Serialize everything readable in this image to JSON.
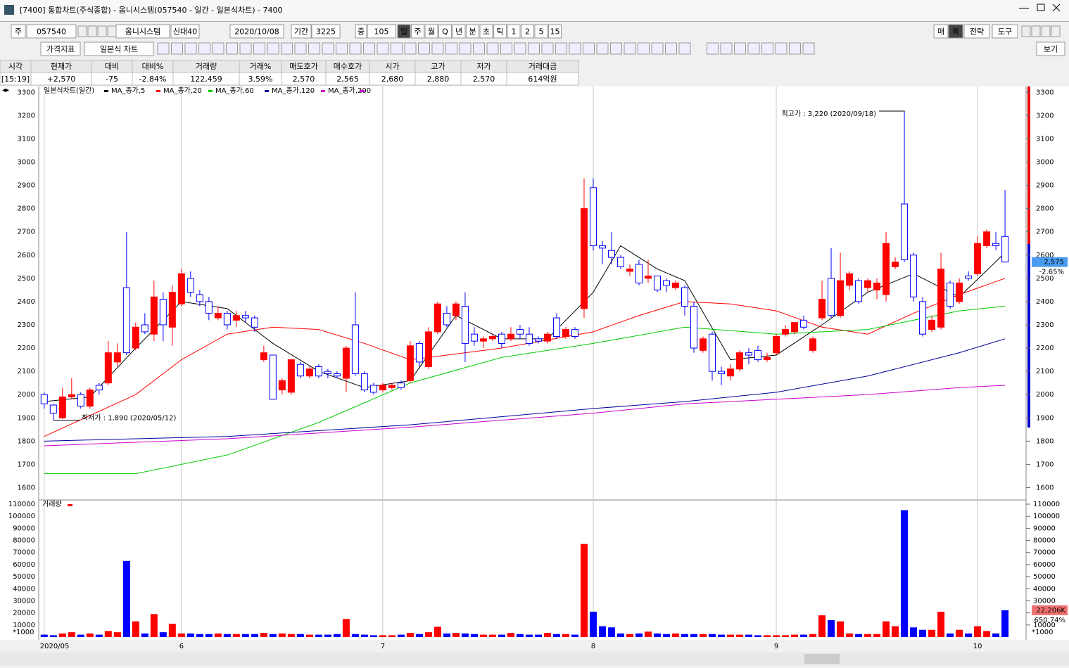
{
  "ui": {
    "window_title": "[7400] 통합차트(주식종합) - 옴니시스템(057540 - 일간 - 일본식차트) - 7400",
    "row1_left": [
      "주",
      "057540",
      "옴니시스템",
      "신대40",
      "2020/10/08",
      "기간",
      "3225",
      "중",
      "105"
    ],
    "periods": [
      "일",
      "주",
      "월",
      "Q",
      "년",
      "분",
      "초",
      "틱",
      "1",
      "2",
      "5",
      "15"
    ],
    "row1_right": [
      "매",
      "복",
      "전략",
      "도구"
    ],
    "row2": [
      "가격지표",
      "일본식 차트"
    ],
    "row2_right": "보기",
    "info_headers": [
      "시각",
      "현재가",
      "대비",
      "대비%",
      "거래량",
      "거래%",
      "매도호가",
      "매수호가",
      "시가",
      "고가",
      "저가",
      "거래대금"
    ],
    "info_values": [
      "[15:19]",
      "+2,570",
      "-75",
      "-2.84%",
      "122,459",
      "3.59%",
      "2,570",
      "2,565",
      "2,680",
      "2,880",
      "2,570",
      "614억원"
    ],
    "price_tag": "2,575",
    "price_pct": "-2.65%",
    "volume_tag": "22,206K",
    "volume_pct": "650.74%"
  },
  "chart_data": {
    "type": "candlestick",
    "legend": "일본식차트(일간)",
    "up_color": "#ff0000",
    "down_color": "#0000ff",
    "open": [
      2000,
      1955,
      1900,
      1990,
      2000,
      1950,
      2040,
      2050,
      2140,
      2460,
      2200,
      2300,
      2260,
      2410,
      2290,
      2390,
      2500,
      2430,
      2400,
      2330,
      2350,
      2320,
      2340,
      2330,
      2150,
      2170,
      2020,
      2010,
      2130,
      2080,
      2120,
      2100,
      2090,
      2070,
      2300,
      2090,
      2040,
      2020,
      2030,
      2050,
      2060,
      2220,
      2120,
      2270,
      2350,
      2340,
      2380,
      2260,
      2230,
      2240,
      2260,
      2240,
      2280,
      2260,
      2240,
      2230,
      2330,
      2250,
      2280,
      2370,
      2890,
      2640,
      2620,
      2590,
      2530,
      2560,
      2500,
      2510,
      2490,
      2460,
      2460,
      2380,
      2190,
      2260,
      2100,
      2080,
      2110,
      2180,
      2190,
      2150,
      2180,
      2260,
      2270,
      2320,
      2190,
      2330,
      2500,
      2340,
      2470,
      2490,
      2460,
      2450,
      2430,
      2550,
      2820,
      2600,
      2400,
      2280,
      2290,
      2480,
      2400,
      2510,
      2520,
      2640,
      2650,
      2680
    ],
    "high": [
      2010,
      1960,
      2030,
      2070,
      2010,
      2030,
      2050,
      2230,
      2220,
      2700,
      2310,
      2350,
      2490,
      2440,
      2470,
      2540,
      2530,
      2450,
      2420,
      2380,
      2360,
      2360,
      2360,
      2340,
      2210,
      2170,
      2070,
      2150,
      2140,
      2120,
      2130,
      2110,
      2100,
      2210,
      2440,
      2100,
      2050,
      2050,
      2050,
      2060,
      2230,
      2230,
      2290,
      2400,
      2380,
      2400,
      2440,
      2290,
      2250,
      2260,
      2270,
      2290,
      2300,
      2290,
      2250,
      2270,
      2350,
      2290,
      2290,
      2930,
      2930,
      2660,
      2700,
      2600,
      2560,
      2580,
      2580,
      2510,
      2500,
      2490,
      2470,
      2400,
      2250,
      2270,
      2120,
      2130,
      2190,
      2200,
      2210,
      2180,
      2260,
      2300,
      2310,
      2340,
      2250,
      2490,
      2630,
      2610,
      2530,
      2500,
      2500,
      2500,
      2700,
      2590,
      3220,
      2610,
      2420,
      2340,
      2610,
      2490,
      2500,
      2530,
      2680,
      2710,
      2700,
      2880
    ],
    "low": [
      1940,
      1890,
      1895,
      1980,
      1940,
      1940,
      2000,
      2040,
      2120,
      2170,
      2190,
      2260,
      2230,
      2230,
      2210,
      2380,
      2420,
      2380,
      2320,
      2320,
      2280,
      2290,
      2310,
      2270,
      2140,
      1980,
      2000,
      2000,
      2070,
      2070,
      2070,
      2070,
      2070,
      2010,
      2080,
      2010,
      2000,
      2010,
      2020,
      2020,
      2050,
      2120,
      2110,
      2260,
      2290,
      2320,
      2140,
      2210,
      2200,
      2230,
      2200,
      2230,
      2240,
      2210,
      2220,
      2220,
      2240,
      2240,
      2240,
      2330,
      2620,
      2560,
      2560,
      2540,
      2510,
      2470,
      2480,
      2440,
      2440,
      2450,
      2340,
      2180,
      2180,
      2060,
      2040,
      2060,
      2100,
      2130,
      2140,
      2140,
      2170,
      2250,
      2260,
      2280,
      2180,
      2320,
      2330,
      2330,
      2450,
      2390,
      2440,
      2410,
      2400,
      2540,
      2570,
      2400,
      2250,
      2270,
      2280,
      2370,
      2390,
      2490,
      2510,
      2630,
      2620,
      2570
    ],
    "close": [
      1960,
      1920,
      1990,
      2000,
      1950,
      2020,
      2020,
      2180,
      2180,
      2180,
      2290,
      2270,
      2420,
      2300,
      2440,
      2520,
      2440,
      2400,
      2350,
      2350,
      2300,
      2340,
      2330,
      2290,
      2180,
      1980,
      2060,
      2150,
      2080,
      2110,
      2080,
      2090,
      2080,
      2200,
      2090,
      2020,
      2010,
      2040,
      2040,
      2030,
      2210,
      2140,
      2270,
      2390,
      2300,
      2390,
      2220,
      2230,
      2240,
      2250,
      2220,
      2260,
      2260,
      2220,
      2230,
      2260,
      2250,
      2280,
      2250,
      2800,
      2640,
      2630,
      2590,
      2550,
      2540,
      2480,
      2510,
      2450,
      2470,
      2480,
      2380,
      2200,
      2240,
      2100,
      2090,
      2110,
      2180,
      2170,
      2150,
      2160,
      2250,
      2280,
      2310,
      2290,
      2240,
      2410,
      2340,
      2490,
      2520,
      2400,
      2490,
      2480,
      2650,
      2570,
      2580,
      2420,
      2260,
      2320,
      2540,
      2380,
      2480,
      2500,
      2650,
      2700,
      2640,
      2570
    ],
    "ylim": [
      1550,
      3325
    ],
    "yticks": [
      1600,
      1700,
      1800,
      1900,
      2000,
      2100,
      2200,
      2300,
      2400,
      2500,
      2600,
      2700,
      2800,
      2900,
      3000,
      3100,
      3200,
      3300
    ],
    "xlim": [
      -0.6,
      107.3
    ],
    "xticks": [
      {
        "value": 0,
        "label": "2020/05"
      },
      {
        "value": 15,
        "label": "6"
      },
      {
        "value": 37,
        "label": "7"
      },
      {
        "value": 60,
        "label": "8"
      },
      {
        "value": 80,
        "label": "9"
      },
      {
        "value": 102,
        "label": "10"
      }
    ],
    "ma": [
      {
        "name": "MA_종가,5",
        "color": "#000000",
        "x": [
          0,
          5,
          10,
          15,
          20,
          25,
          30,
          35,
          40,
          45,
          50,
          55,
          60,
          63,
          67,
          70,
          75,
          80,
          85,
          90,
          95,
          100,
          105
        ],
        "values": [
          1970,
          1990,
          2200,
          2400,
          2370,
          2220,
          2100,
          2030,
          2060,
          2340,
          2240,
          2240,
          2440,
          2640,
          2540,
          2490,
          2150,
          2170,
          2300,
          2440,
          2520,
          2420,
          2610
        ]
      },
      {
        "name": "MA_종가,20",
        "color": "#ff0000",
        "x": [
          0,
          10,
          15,
          20,
          25,
          30,
          35,
          40,
          50,
          60,
          65,
          70,
          75,
          80,
          85,
          90,
          95,
          100,
          105
        ],
        "values": [
          1820,
          2000,
          2150,
          2260,
          2290,
          2280,
          2220,
          2150,
          2200,
          2270,
          2340,
          2400,
          2390,
          2360,
          2290,
          2260,
          2350,
          2430,
          2500
        ]
      },
      {
        "name": "MA_종가,60",
        "color": "#00cc00",
        "x": [
          0,
          10,
          20,
          30,
          40,
          50,
          60,
          70,
          80,
          90,
          100,
          105
        ],
        "values": [
          1660,
          1660,
          1740,
          1880,
          2050,
          2160,
          2220,
          2290,
          2260,
          2280,
          2360,
          2380
        ]
      },
      {
        "name": "MA_종가,120",
        "color": "#000099",
        "x": [
          0,
          20,
          40,
          60,
          70,
          80,
          90,
          100,
          105
        ],
        "values": [
          1800,
          1820,
          1870,
          1940,
          1970,
          2010,
          2080,
          2180,
          2240
        ]
      },
      {
        "name": "MA_종가,200",
        "color": "#cc00cc",
        "x": [
          0,
          20,
          40,
          60,
          70,
          80,
          90,
          100,
          105
        ],
        "values": [
          1780,
          1810,
          1860,
          1920,
          1960,
          1980,
          2000,
          2030,
          2040
        ]
      }
    ],
    "annotations": [
      {
        "text": "최고가 : 3,220 (2020/09/18)",
        "x": 94,
        "y": 3220
      },
      {
        "text": "최저가 : 1,890 (2020/05/12)",
        "x": 1,
        "y": 1890
      }
    ],
    "volume": {
      "legend": "거래량",
      "unit": "*1000",
      "ylim": [
        0,
        112900
      ],
      "yticks": [
        10000,
        20000,
        30000,
        40000,
        50000,
        60000,
        70000,
        80000,
        90000,
        100000,
        110000
      ],
      "values": [
        2000,
        1500,
        3000,
        4000,
        2000,
        3000,
        2000,
        5000,
        4000,
        63000,
        13000,
        3000,
        19000,
        4000,
        11000,
        3000,
        3000,
        2500,
        2500,
        3000,
        2500,
        2500,
        2500,
        2500,
        3500,
        2500,
        3000,
        2500,
        2500,
        2000,
        2000,
        2000,
        2500,
        15000,
        2500,
        2000,
        1500,
        1500,
        1500,
        2000,
        3500,
        2500,
        4000,
        8500,
        3000,
        3500,
        3000,
        2500,
        2000,
        2000,
        2000,
        3500,
        2500,
        2000,
        2000,
        3500,
        2500,
        2500,
        2000,
        77000,
        21000,
        9000,
        8000,
        3000,
        2500,
        3000,
        4500,
        3000,
        2500,
        3000,
        2500,
        2500,
        2500,
        2500,
        2000,
        2000,
        2000,
        2000,
        1500,
        1500,
        1500,
        1500,
        2000,
        2000,
        2500,
        18000,
        14000,
        13000,
        3000,
        2500,
        2500,
        2500,
        13000,
        9000,
        105000,
        8000,
        6000,
        6000,
        21000,
        3000,
        6000,
        3000,
        9000,
        5000,
        3000,
        22206
      ]
    }
  }
}
